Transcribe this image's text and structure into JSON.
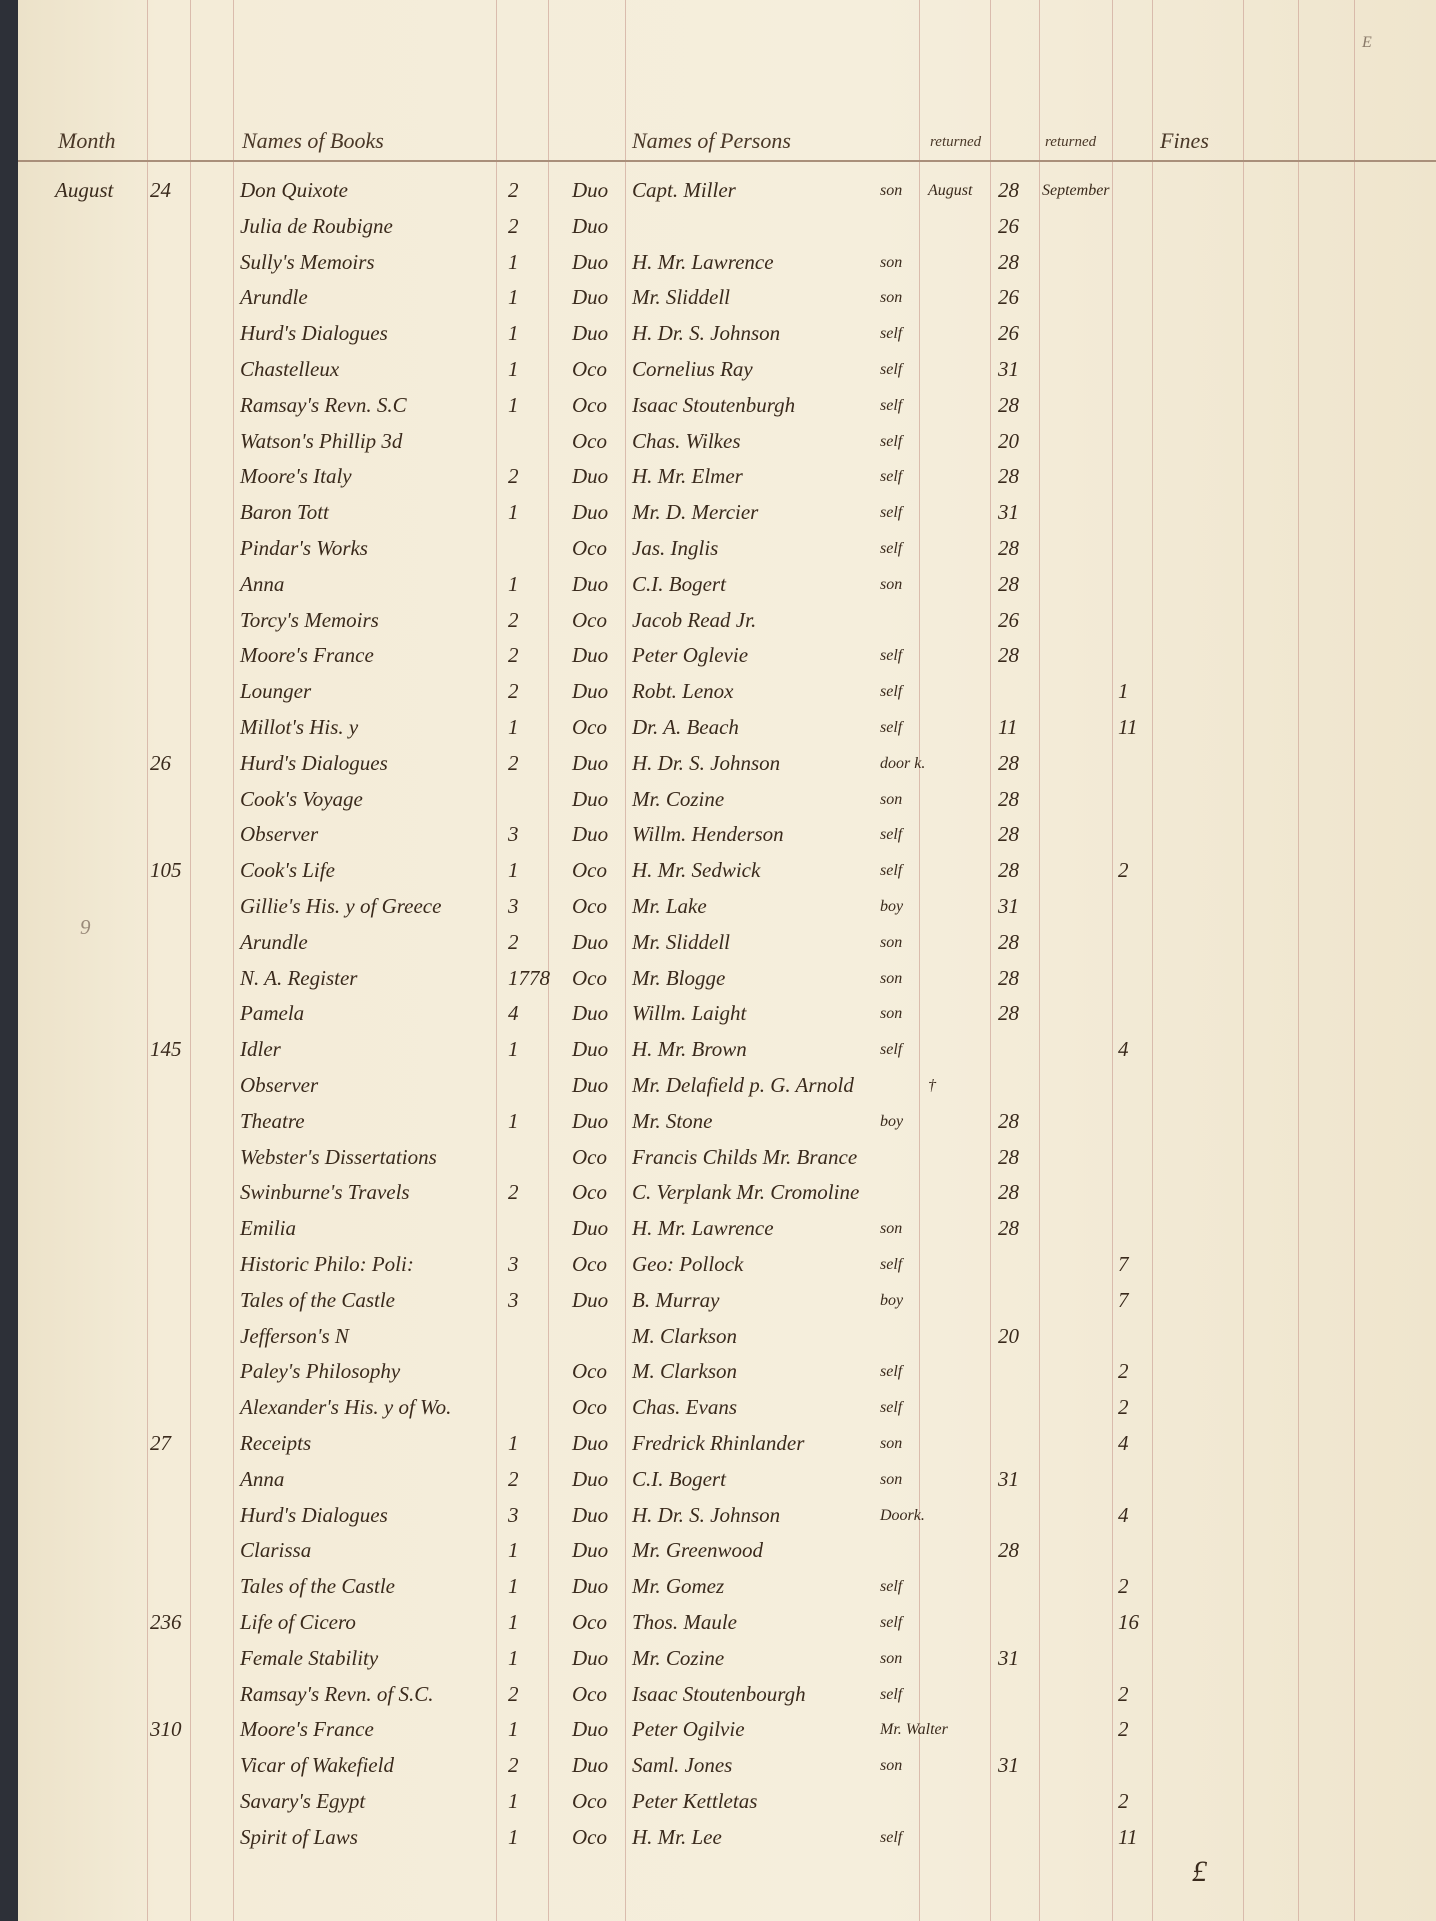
{
  "headers": {
    "month": "Month",
    "books": "Names of Books",
    "persons": "Names of Persons",
    "returned1": "returned",
    "returned2": "returned",
    "fines": "Fines"
  },
  "corner_mark": "E",
  "bottom_mark": "£",
  "margin_notes": [
    "9"
  ],
  "rows": [
    {
      "month": "August",
      "day": "24",
      "book": "Don Quixote",
      "qty": "2",
      "fmt": "Duo",
      "person": "Capt. Miller",
      "rel": "son",
      "ret_month": "August",
      "ret_day": "28",
      "ret2": "September",
      "fine": ""
    },
    {
      "month": "",
      "day": "",
      "book": "Julia de Roubigne",
      "qty": "2",
      "fmt": "Duo",
      "person": "",
      "rel": "",
      "ret_month": "",
      "ret_day": "26",
      "ret2": "",
      "fine": ""
    },
    {
      "month": "",
      "day": "",
      "book": "Sully's Memoirs",
      "qty": "1",
      "fmt": "Duo",
      "person": "H. Mr. Lawrence",
      "rel": "son",
      "ret_month": "",
      "ret_day": "28",
      "ret2": "",
      "fine": ""
    },
    {
      "month": "",
      "day": "",
      "book": "Arundle",
      "qty": "1",
      "fmt": "Duo",
      "person": "Mr. Sliddell",
      "rel": "son",
      "ret_month": "",
      "ret_day": "26",
      "ret2": "",
      "fine": ""
    },
    {
      "month": "",
      "day": "",
      "book": "Hurd's Dialogues",
      "qty": "1",
      "fmt": "Duo",
      "person": "H. Dr. S. Johnson",
      "rel": "self",
      "ret_month": "",
      "ret_day": "26",
      "ret2": "",
      "fine": ""
    },
    {
      "month": "",
      "day": "",
      "book": "Chastelleux",
      "qty": "1",
      "fmt": "Oco",
      "person": "Cornelius Ray",
      "rel": "self",
      "ret_month": "",
      "ret_day": "31",
      "ret2": "",
      "fine": ""
    },
    {
      "month": "",
      "day": "",
      "book": "Ramsay's Revn. S.C",
      "qty": "1",
      "fmt": "Oco",
      "person": "Isaac Stoutenburgh",
      "rel": "self",
      "ret_month": "",
      "ret_day": "28",
      "ret2": "",
      "fine": ""
    },
    {
      "month": "",
      "day": "",
      "book": "Watson's Phillip 3d",
      "qty": "",
      "fmt": "Oco",
      "person": "Chas. Wilkes",
      "rel": "self",
      "ret_month": "",
      "ret_day": "20",
      "ret2": "",
      "fine": ""
    },
    {
      "month": "",
      "day": "",
      "book": "Moore's Italy",
      "qty": "2",
      "fmt": "Duo",
      "person": "H. Mr. Elmer",
      "rel": "self",
      "ret_month": "",
      "ret_day": "28",
      "ret2": "",
      "fine": ""
    },
    {
      "month": "",
      "day": "",
      "book": "Baron Tott",
      "qty": "1",
      "fmt": "Duo",
      "person": "Mr. D. Mercier",
      "rel": "self",
      "ret_month": "",
      "ret_day": "31",
      "ret2": "",
      "fine": ""
    },
    {
      "month": "",
      "day": "",
      "book": "Pindar's Works",
      "qty": "",
      "fmt": "Oco",
      "person": "Jas. Inglis",
      "rel": "self",
      "ret_month": "",
      "ret_day": "28",
      "ret2": "",
      "fine": ""
    },
    {
      "month": "",
      "day": "",
      "book": "Anna",
      "qty": "1",
      "fmt": "Duo",
      "person": "C.I. Bogert",
      "rel": "son",
      "ret_month": "",
      "ret_day": "28",
      "ret2": "",
      "fine": ""
    },
    {
      "month": "",
      "day": "",
      "book": "Torcy's Memoirs",
      "qty": "2",
      "fmt": "Oco",
      "person": "Jacob Read Jr.",
      "rel": "",
      "ret_month": "",
      "ret_day": "26",
      "ret2": "",
      "fine": ""
    },
    {
      "month": "",
      "day": "",
      "book": "Moore's France",
      "qty": "2",
      "fmt": "Duo",
      "person": "Peter Oglevie",
      "rel": "self",
      "ret_month": "",
      "ret_day": "28",
      "ret2": "",
      "fine": ""
    },
    {
      "month": "",
      "day": "",
      "book": "Lounger",
      "qty": "2",
      "fmt": "Duo",
      "person": "Robt. Lenox",
      "rel": "self",
      "ret_month": "",
      "ret_day": "",
      "ret2": "",
      "fine": "1"
    },
    {
      "month": "",
      "day": "",
      "book": "Millot's His. y",
      "qty": "1",
      "fmt": "Oco",
      "person": "Dr. A. Beach",
      "rel": "self",
      "ret_month": "",
      "ret_day": "11",
      "ret2": "",
      "fine": "11"
    },
    {
      "month": "",
      "day": "26",
      "book": "Hurd's Dialogues",
      "qty": "2",
      "fmt": "Duo",
      "person": "H. Dr. S. Johnson",
      "rel": "door k.",
      "ret_month": "",
      "ret_day": "28",
      "ret2": "",
      "fine": ""
    },
    {
      "month": "",
      "day": "",
      "book": "Cook's Voyage",
      "qty": "",
      "fmt": "Duo",
      "person": "Mr. Cozine",
      "rel": "son",
      "ret_month": "",
      "ret_day": "28",
      "ret2": "",
      "fine": ""
    },
    {
      "month": "",
      "day": "",
      "book": "Observer",
      "qty": "3",
      "fmt": "Duo",
      "person": "Willm. Henderson",
      "rel": "self",
      "ret_month": "",
      "ret_day": "28",
      "ret2": "",
      "fine": ""
    },
    {
      "month": "",
      "day": "105",
      "book": "Cook's Life",
      "qty": "1",
      "fmt": "Oco",
      "person": "H. Mr. Sedwick",
      "rel": "self",
      "ret_month": "",
      "ret_day": "28",
      "ret2": "",
      "fine": "2"
    },
    {
      "month": "",
      "day": "",
      "book": "Gillie's His. y of Greece",
      "qty": "3",
      "fmt": "Oco",
      "person": "Mr. Lake",
      "rel": "boy",
      "ret_month": "",
      "ret_day": "31",
      "ret2": "",
      "fine": ""
    },
    {
      "month": "",
      "day": "",
      "book": "Arundle",
      "qty": "2",
      "fmt": "Duo",
      "person": "Mr. Sliddell",
      "rel": "son",
      "ret_month": "",
      "ret_day": "28",
      "ret2": "",
      "fine": ""
    },
    {
      "month": "",
      "day": "",
      "book": "N. A. Register",
      "qty": "1778",
      "fmt": "Oco",
      "person": "Mr. Blogge",
      "rel": "son",
      "ret_month": "",
      "ret_day": "28",
      "ret2": "",
      "fine": ""
    },
    {
      "month": "",
      "day": "",
      "book": "Pamela",
      "qty": "4",
      "fmt": "Duo",
      "person": "Willm. Laight",
      "rel": "son",
      "ret_month": "",
      "ret_day": "28",
      "ret2": "",
      "fine": ""
    },
    {
      "month": "",
      "day": "145",
      "book": "Idler",
      "qty": "1",
      "fmt": "Duo",
      "person": "H. Mr. Brown",
      "rel": "self",
      "ret_month": "",
      "ret_day": "",
      "ret2": "",
      "fine": "4"
    },
    {
      "month": "",
      "day": "",
      "book": "Observer",
      "qty": "",
      "fmt": "Duo",
      "person": "Mr. Delafield p. G. Arnold",
      "rel": "",
      "ret_month": "†",
      "ret_day": "",
      "ret2": "",
      "fine": ""
    },
    {
      "month": "",
      "day": "",
      "book": "Theatre",
      "qty": "1",
      "fmt": "Duo",
      "person": "Mr. Stone",
      "rel": "boy",
      "ret_month": "",
      "ret_day": "28",
      "ret2": "",
      "fine": ""
    },
    {
      "month": "",
      "day": "",
      "book": "Webster's Dissertations",
      "qty": "",
      "fmt": "Oco",
      "person": "Francis Childs Mr. Brance",
      "rel": "",
      "ret_month": "",
      "ret_day": "28",
      "ret2": "",
      "fine": ""
    },
    {
      "month": "",
      "day": "",
      "book": "Swinburne's Travels",
      "qty": "2",
      "fmt": "Oco",
      "person": "C. Verplank Mr. Cromoline",
      "rel": "",
      "ret_month": "",
      "ret_day": "28",
      "ret2": "",
      "fine": ""
    },
    {
      "month": "",
      "day": "",
      "book": "Emilia",
      "qty": "",
      "fmt": "Duo",
      "person": "H. Mr. Lawrence",
      "rel": "son",
      "ret_month": "",
      "ret_day": "28",
      "ret2": "",
      "fine": ""
    },
    {
      "month": "",
      "day": "",
      "book": "Historic Philo: Poli:",
      "qty": "3",
      "fmt": "Oco",
      "person": "Geo: Pollock",
      "rel": "self",
      "ret_month": "",
      "ret_day": "",
      "ret2": "",
      "fine": "7"
    },
    {
      "month": "",
      "day": "",
      "book": "Tales of the Castle",
      "qty": "3",
      "fmt": "Duo",
      "person": "B. Murray",
      "rel": "boy",
      "ret_month": "",
      "ret_day": "",
      "ret2": "",
      "fine": "7"
    },
    {
      "month": "",
      "day": "",
      "book": "Jefferson's N",
      "qty": "",
      "fmt": "",
      "person": "M. Clarkson",
      "rel": "",
      "ret_month": "",
      "ret_day": "20",
      "ret2": "",
      "fine": ""
    },
    {
      "month": "",
      "day": "",
      "book": "Paley's Philosophy",
      "qty": "",
      "fmt": "Oco",
      "person": "M. Clarkson",
      "rel": "self",
      "ret_month": "",
      "ret_day": "",
      "ret2": "",
      "fine": "2"
    },
    {
      "month": "",
      "day": "",
      "book": "Alexander's His. y of Wo.",
      "qty": "",
      "fmt": "Oco",
      "person": "Chas. Evans",
      "rel": "self",
      "ret_month": "",
      "ret_day": "",
      "ret2": "",
      "fine": "2"
    },
    {
      "month": "",
      "day": "27",
      "book": "Receipts",
      "qty": "1",
      "fmt": "Duo",
      "person": "Fredrick Rhinlander",
      "rel": "son",
      "ret_month": "",
      "ret_day": "",
      "ret2": "",
      "fine": "4"
    },
    {
      "month": "",
      "day": "",
      "book": "Anna",
      "qty": "2",
      "fmt": "Duo",
      "person": "C.I. Bogert",
      "rel": "son",
      "ret_month": "",
      "ret_day": "31",
      "ret2": "",
      "fine": ""
    },
    {
      "month": "",
      "day": "",
      "book": "Hurd's Dialogues",
      "qty": "3",
      "fmt": "Duo",
      "person": "H. Dr. S. Johnson",
      "rel": "Doork.",
      "ret_month": "",
      "ret_day": "",
      "ret2": "",
      "fine": "4"
    },
    {
      "month": "",
      "day": "",
      "book": "Clarissa",
      "qty": "1",
      "fmt": "Duo",
      "person": "Mr. Greenwood",
      "rel": "",
      "ret_month": "",
      "ret_day": "28",
      "ret2": "",
      "fine": ""
    },
    {
      "month": "",
      "day": "",
      "book": "Tales of the Castle",
      "qty": "1",
      "fmt": "Duo",
      "person": "Mr. Gomez",
      "rel": "self",
      "ret_month": "",
      "ret_day": "",
      "ret2": "",
      "fine": "2"
    },
    {
      "month": "",
      "day": "236",
      "book": "Life of Cicero",
      "qty": "1",
      "fmt": "Oco",
      "person": "Thos. Maule",
      "rel": "self",
      "ret_month": "",
      "ret_day": "",
      "ret2": "",
      "fine": "16"
    },
    {
      "month": "",
      "day": "",
      "book": "Female Stability",
      "qty": "1",
      "fmt": "Duo",
      "person": "Mr. Cozine",
      "rel": "son",
      "ret_month": "",
      "ret_day": "31",
      "ret2": "",
      "fine": ""
    },
    {
      "month": "",
      "day": "",
      "book": "Ramsay's Revn. of S.C.",
      "qty": "2",
      "fmt": "Oco",
      "person": "Isaac Stoutenbourgh",
      "rel": "self",
      "ret_month": "",
      "ret_day": "",
      "ret2": "",
      "fine": "2"
    },
    {
      "month": "",
      "day": "310",
      "book": "Moore's France",
      "qty": "1",
      "fmt": "Duo",
      "person": "Peter Ogilvie",
      "rel": "Mr. Walter",
      "ret_month": "",
      "ret_day": "",
      "ret2": "",
      "fine": "2"
    },
    {
      "month": "",
      "day": "",
      "book": "Vicar of Wakefield",
      "qty": "2",
      "fmt": "Duo",
      "person": "Saml. Jones",
      "rel": "son",
      "ret_month": "",
      "ret_day": "31",
      "ret2": "",
      "fine": ""
    },
    {
      "month": "",
      "day": "",
      "book": "Savary's Egypt",
      "qty": "1",
      "fmt": "Oco",
      "person": "Peter Kettletas",
      "rel": "",
      "ret_month": "",
      "ret_day": "",
      "ret2": "",
      "fine": "2"
    },
    {
      "month": "",
      "day": "",
      "book": "Spirit of Laws",
      "qty": "1",
      "fmt": "Oco",
      "person": "H. Mr. Lee",
      "rel": "self",
      "ret_month": "",
      "ret_day": "",
      "ret2": "",
      "fine": "11"
    }
  ]
}
